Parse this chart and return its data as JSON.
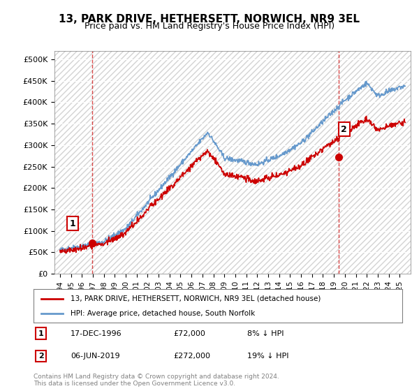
{
  "title": "13, PARK DRIVE, HETHERSETT, NORWICH, NR9 3EL",
  "subtitle": "Price paid vs. HM Land Registry's House Price Index (HPI)",
  "legend_line1": "13, PARK DRIVE, HETHERSETT, NORWICH, NR9 3EL (detached house)",
  "legend_line2": "HPI: Average price, detached house, South Norfolk",
  "note1_box": "1",
  "note1_date": "17-DEC-1996",
  "note1_price": "£72,000",
  "note1_hpi": "8% ↓ HPI",
  "note2_box": "2",
  "note2_date": "06-JUN-2019",
  "note2_price": "£272,000",
  "note2_hpi": "19% ↓ HPI",
  "copyright": "Contains HM Land Registry data © Crown copyright and database right 2024.\nThis data is licensed under the Open Government Licence v3.0.",
  "sale1_year": 1996.96,
  "sale1_price": 72000,
  "sale2_year": 2019.43,
  "sale2_price": 272000,
  "hpi_color": "#6699cc",
  "price_color": "#cc0000",
  "sale_marker_color": "#cc0000",
  "vline_color": "#cc0000",
  "background_color": "#ffffff",
  "plot_bg_color": "#f0f0f0",
  "ylim_min": 0,
  "ylim_max": 520000,
  "xmin": 1993.5,
  "xmax": 2026.0
}
